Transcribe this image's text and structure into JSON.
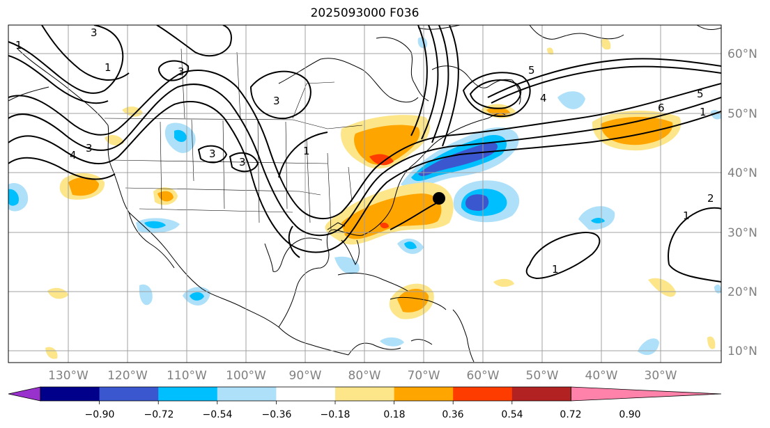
{
  "title": "2025093000 F036",
  "latitude_labels": [
    "60°N",
    "50°N",
    "40°N",
    "30°N",
    "20°N",
    "10°N"
  ],
  "longitude_labels": [
    "130°W",
    "120°W",
    "110°W",
    "100°W",
    "90°W",
    "80°W",
    "70°W",
    "60°W",
    "50°W",
    "40°W",
    "30°W"
  ],
  "colorbar": {
    "ticks": [
      "−0.90",
      "−0.72",
      "−0.54",
      "−0.36",
      "−0.18",
      "0.18",
      "0.36",
      "0.54",
      "0.72",
      "0.90"
    ],
    "colors": [
      "#9932cc",
      "#00008b",
      "#3a57d0",
      "#00bfff",
      "#aee0fa",
      "#ffffff",
      "#fde68a",
      "#ffa500",
      "#ff3c00",
      "#b22222",
      "#ff82ab"
    ]
  },
  "contour_labels": [
    "3",
    "1",
    "3",
    "3",
    "3",
    "3",
    "1",
    "1",
    "4",
    "3",
    "5",
    "4",
    "6",
    "5",
    "1",
    "1",
    "2",
    "1"
  ],
  "marker": "storm-center"
}
